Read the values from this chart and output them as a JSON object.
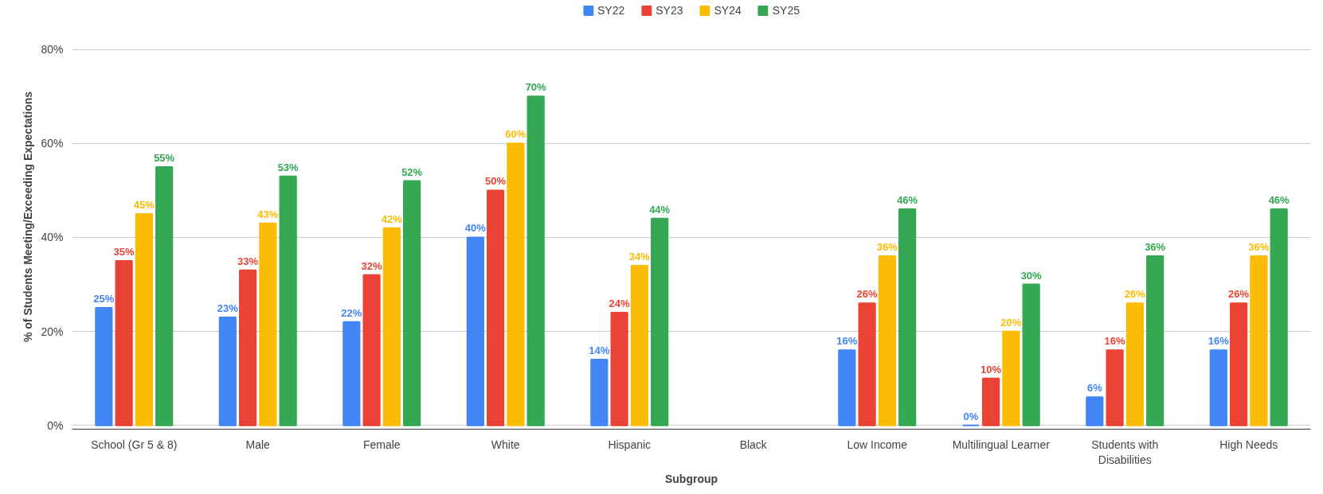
{
  "chart_data": {
    "type": "bar",
    "xlabel": "Subgroup",
    "ylabel": "% of Students Meeting/Exceeding Expectations",
    "categories": [
      "School (Gr 5 & 8)",
      "Male",
      "Female",
      "White",
      "Hispanic",
      "Black",
      "Low Income",
      "Multilingual Learner",
      "Students with Disabilities",
      "High Needs"
    ],
    "series": [
      {
        "name": "SY22",
        "color": "#4285f4",
        "values": [
          25,
          23,
          22,
          40,
          14,
          null,
          16,
          0,
          6,
          16
        ],
        "value_labels": [
          "25%",
          "23%",
          "22%",
          "40%",
          "14%",
          null,
          "16%",
          "0%",
          "6%",
          "16%"
        ]
      },
      {
        "name": "SY23",
        "color": "#ea4335",
        "values": [
          35,
          33,
          32,
          50,
          24,
          null,
          26,
          10,
          16,
          26
        ],
        "value_labels": [
          "35%",
          "33%",
          "32%",
          "50%",
          "24%",
          null,
          "26%",
          "10%",
          "16%",
          "26%"
        ]
      },
      {
        "name": "SY24",
        "color": "#fbbc04",
        "values": [
          45,
          43,
          42,
          60,
          34,
          null,
          36,
          20,
          26,
          36
        ],
        "value_labels": [
          "45%",
          "43%",
          "42%",
          "60%",
          "34%",
          null,
          "36%",
          "20%",
          "26%",
          "36%"
        ]
      },
      {
        "name": "SY25",
        "color": "#34a853",
        "values": [
          55,
          53,
          52,
          70,
          44,
          null,
          46,
          30,
          36,
          46
        ],
        "value_labels": [
          "55%",
          "53%",
          "52%",
          "70%",
          "44%",
          null,
          "46%",
          "30%",
          "36%",
          "46%"
        ]
      }
    ],
    "ylim": [
      0,
      80
    ],
    "yticks": [
      {
        "value": 0,
        "label": "0%"
      },
      {
        "value": 20,
        "label": "20%"
      },
      {
        "value": 40,
        "label": "40%"
      },
      {
        "value": 60,
        "label": "60%"
      },
      {
        "value": 80,
        "label": "80%"
      }
    ],
    "grid": "y",
    "legend": "top"
  }
}
